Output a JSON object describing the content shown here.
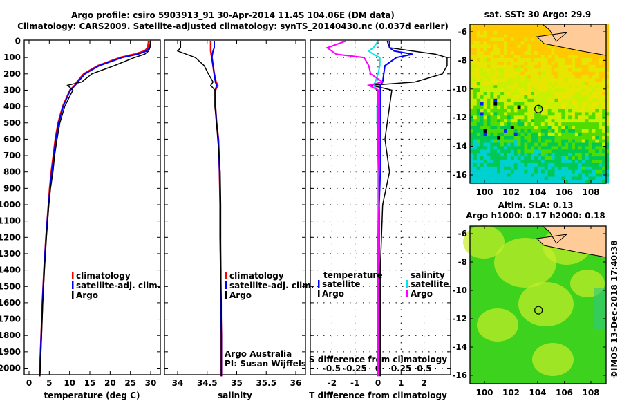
{
  "title_line1": "Argo profile: csiro 5903913_91 30-Apr-2014 11.4S 104.06E (DM data)",
  "title_line2": "Climatology: CARS2009. Satellite-adjusted climatology: synTS_20140430.nc (0.037d earlier)",
  "footer": "©IMOS 13-Dec-2018 17:40:38",
  "credits": [
    "Argo Australia",
    "PI: Susan Wijffels"
  ],
  "colors": {
    "climatology": "#ff0000",
    "satellite": "#0000ff",
    "argo": "#000000",
    "sal_satellite": "#00e5e5",
    "sal_argo": "#ff00ff"
  },
  "chart_data": [
    {
      "type": "line",
      "name": "temperature",
      "xlabel": "temperature (deg C)",
      "ylabel": "",
      "xticks": [
        0,
        5,
        10,
        15,
        20,
        25,
        30
      ],
      "yticks": [
        0,
        100,
        200,
        300,
        400,
        500,
        600,
        700,
        800,
        900,
        1000,
        1100,
        1200,
        1300,
        1400,
        1500,
        1600,
        1700,
        1800,
        1900,
        2000
      ],
      "ylim": [
        2050,
        0
      ],
      "legend": [
        "climatology",
        "satellite-adj. clim.",
        "Argo"
      ],
      "depth": [
        0,
        40,
        60,
        80,
        100,
        150,
        200,
        250,
        270,
        300,
        400,
        500,
        600,
        700,
        800,
        900,
        1000,
        1200,
        1400,
        1600,
        1800,
        2000,
        2050
      ],
      "series": [
        {
          "name": "climatology",
          "values": [
            29.5,
            29.3,
            28.5,
            26,
            22.5,
            17,
            13.5,
            11.8,
            11.3,
            10.1,
            8.3,
            7.2,
            6.5,
            6,
            5.5,
            5.1,
            4.8,
            4.2,
            3.7,
            3.3,
            3,
            2.7,
            2.6
          ]
        },
        {
          "name": "satellite-adj. clim.",
          "values": [
            30,
            29.8,
            29,
            26.8,
            23,
            17.3,
            13.8,
            12,
            11.4,
            10.2,
            8.4,
            7.3,
            6.6,
            6.1,
            5.6,
            5.2,
            4.8,
            4.2,
            3.7,
            3.3,
            3,
            2.7,
            2.6
          ]
        },
        {
          "name": "Argo",
          "values": [
            29.9,
            29.8,
            29.5,
            28.5,
            26,
            21,
            15.5,
            13,
            9.5,
            10.8,
            8.8,
            7.6,
            6.9,
            6.3,
            5.9,
            5.3,
            4.9,
            4.3,
            3.8,
            3.4,
            3.1,
            2.8,
            2.7
          ]
        }
      ]
    },
    {
      "type": "line",
      "name": "salinity",
      "xlabel": "salinity",
      "xticks": [
        34,
        34.5,
        35,
        35.5,
        36
      ],
      "ylim": [
        2050,
        0
      ],
      "legend": [
        "climatology",
        "satellite-adj. clim.",
        "Argo"
      ],
      "depth": [
        0,
        40,
        60,
        80,
        100,
        150,
        200,
        250,
        270,
        300,
        400,
        500,
        600,
        700,
        800,
        1000,
        1200,
        1400,
        1600,
        1800,
        2000,
        2050
      ],
      "series": [
        {
          "name": "climatology",
          "values": [
            34.56,
            34.56,
            34.56,
            34.57,
            34.58,
            34.6,
            34.62,
            34.65,
            34.68,
            34.64,
            34.64,
            34.66,
            34.69,
            34.7,
            34.71,
            34.72,
            34.72,
            34.73,
            34.73,
            34.74,
            34.74,
            34.74
          ]
        },
        {
          "name": "satellite-adj. clim.",
          "values": [
            34.62,
            34.62,
            34.6,
            34.59,
            34.58,
            34.6,
            34.62,
            34.64,
            34.66,
            34.64,
            34.64,
            34.66,
            34.69,
            34.7,
            34.71,
            34.72,
            34.72,
            34.73,
            34.73,
            34.74,
            34.74,
            34.74
          ]
        },
        {
          "name": "Argo",
          "values": [
            34.05,
            34.05,
            34.0,
            34.15,
            34.3,
            34.45,
            34.52,
            34.6,
            34.56,
            34.63,
            34.63,
            34.66,
            34.68,
            34.7,
            34.72,
            34.73,
            34.73,
            34.73,
            34.74,
            34.74,
            34.74,
            34.74
          ]
        }
      ]
    },
    {
      "type": "line",
      "name": "differences",
      "xlabel": "T difference from climatology",
      "xticks": [
        -2,
        -1,
        0,
        1,
        2
      ],
      "x2label": "S difference from climatology",
      "x2ticks": [
        -0.5,
        -0.25,
        0,
        0.25,
        0.5
      ],
      "legend_temperature": {
        "title": "temperature",
        "items": [
          "satellite",
          "Argo"
        ]
      },
      "legend_salinity": {
        "title": "salinity",
        "items": [
          "satellite",
          "Argo"
        ]
      },
      "depth": [
        0,
        40,
        60,
        80,
        100,
        150,
        200,
        250,
        270,
        300,
        400,
        500,
        600,
        700,
        800,
        1000,
        1200,
        1400,
        1600,
        1800,
        2000,
        2050
      ],
      "series": [
        {
          "name": "temperature Argo",
          "axis": "T",
          "values": [
            0.4,
            0.5,
            1.5,
            2.5,
            3.0,
            3.0,
            2.8,
            1.6,
            -0.3,
            0.6,
            0.5,
            0.4,
            0.3,
            0.4,
            0.5,
            0.2,
            0.15,
            0.1,
            0.1,
            0.1,
            0.1,
            0.1
          ]
        },
        {
          "name": "temperature satellite",
          "axis": "T",
          "values": [
            0.5,
            0.5,
            0.7,
            1.5,
            0.8,
            0.3,
            0.25,
            0.2,
            0.1,
            0.1,
            0.1,
            0.1,
            0.1,
            0.1,
            0.1,
            0.05,
            0.05,
            0.05,
            0.05,
            0.05,
            0.05,
            0.05
          ]
        },
        {
          "name": "salinity satellite",
          "axis": "S",
          "values": [
            0.0,
            -0.05,
            -0.1,
            -0.05,
            0.02,
            0.02,
            0.0,
            -0.03,
            -0.05,
            0.0,
            -0.01,
            -0.01,
            0.0,
            0.0,
            0.0,
            0.0,
            0.0,
            0.0,
            0.0,
            0.0,
            0.0,
            0.0
          ]
        },
        {
          "name": "salinity Argo",
          "axis": "S",
          "values": [
            -0.35,
            -0.55,
            -0.5,
            -0.45,
            -0.15,
            -0.1,
            -0.08,
            0.05,
            -0.1,
            0.0,
            0.0,
            0.0,
            0.0,
            0.0,
            0.01,
            0.01,
            0.0,
            0.0,
            0.0,
            0.0,
            0.0,
            0.0
          ]
        }
      ]
    },
    {
      "type": "heatmap",
      "name": "sst-map",
      "title": "sat. SST: 30 Argo: 29.9",
      "xticks": [
        100,
        102,
        104,
        106,
        108
      ],
      "yticks": [
        -6,
        -8,
        -10,
        -12,
        -14,
        -16
      ],
      "xlim": [
        99,
        109.3
      ],
      "ylim": [
        -17.3,
        -5.2
      ],
      "argo_position": [
        104.06,
        -11.4
      ]
    },
    {
      "type": "heatmap",
      "name": "sla-map",
      "title": "Altim. SLA: 0.13",
      "subtitle": "Argo h1000: 0.17 h2000: 0.18",
      "xticks": [
        100,
        102,
        104,
        106,
        108
      ],
      "yticks": [
        -6,
        -8,
        -10,
        -12,
        -14,
        -16
      ],
      "xlim": [
        99,
        109.3
      ],
      "ylim": [
        -17.3,
        -5.2
      ],
      "argo_position": [
        104.06,
        -11.4
      ]
    }
  ]
}
